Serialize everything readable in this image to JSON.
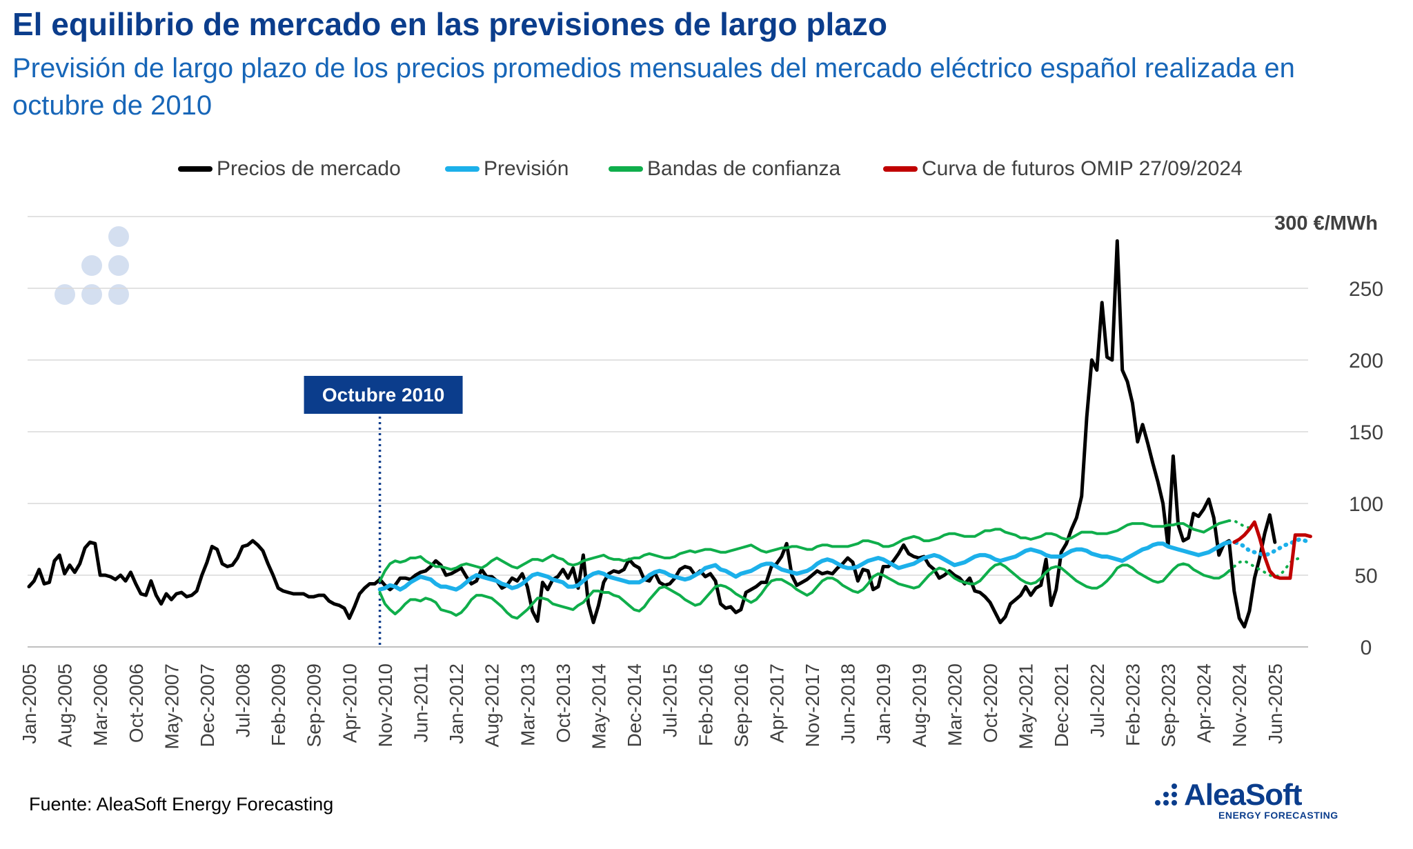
{
  "header": {
    "title": "El equilibrio de mercado en las previsiones de largo plazo",
    "subtitle": "Previsión de largo plazo de los precios promedios mensuales del mercado eléctrico español realizada en octubre de 2010"
  },
  "footer": {
    "source": "Fuente: AleaSoft Energy Forecasting",
    "logo_name": "AleaSoft",
    "logo_sub": "ENERGY FORECASTING"
  },
  "colors": {
    "title": "#0b3d8c",
    "subtitle": "#1766b8",
    "market": "#000000",
    "forecast": "#1cb0ea",
    "bands": "#0fae4b",
    "futures": "#c00000",
    "annotation_bg": "#0b3d8c",
    "grid": "#d9d9d9",
    "dots": "#d4dff0"
  },
  "chart_data": {
    "type": "line",
    "x_start": "2005-01",
    "x_end": "2025-12",
    "x_unit": "month",
    "ylim": [
      0,
      300
    ],
    "yticks": [
      0,
      50,
      100,
      150,
      200,
      250
    ],
    "y_top_label": "300 €/MWh",
    "y_axis_side": "right",
    "grid": true,
    "legend_position": "top",
    "xtick_labels": [
      "Jan-2005",
      "Aug-2005",
      "Mar-2006",
      "Oct-2006",
      "May-2007",
      "Dec-2007",
      "Jul-2008",
      "Feb-2009",
      "Sep-2009",
      "Apr-2010",
      "Nov-2010",
      "Jun-2011",
      "Jan-2012",
      "Aug-2012",
      "Mar-2013",
      "Oct-2013",
      "May-2014",
      "Dec-2014",
      "Jul-2015",
      "Feb-2016",
      "Sep-2016",
      "Apr-2017",
      "Nov-2017",
      "Jun-2018",
      "Jan-2019",
      "Aug-2019",
      "Mar-2020",
      "Oct-2020",
      "May-2021",
      "Dec-2021",
      "Jul-2022",
      "Feb-2023",
      "Sep-2023",
      "Apr-2024",
      "Nov-2024",
      "Jun-2025"
    ],
    "annotation": {
      "label": "Octubre 2010",
      "x": "2010-10"
    },
    "series": [
      {
        "name": "Precios de mercado",
        "start": "2005-01",
        "values": [
          42,
          46,
          54,
          44,
          45,
          60,
          64,
          51,
          57,
          52,
          58,
          69,
          73,
          72,
          50,
          50,
          49,
          47,
          50,
          46,
          52,
          44,
          37,
          36,
          46,
          36,
          30,
          37,
          33,
          37,
          38,
          35,
          36,
          39,
          50,
          59,
          70,
          68,
          58,
          56,
          57,
          62,
          70,
          71,
          74,
          71,
          67,
          58,
          50,
          41,
          39,
          38,
          37,
          37,
          37,
          35,
          35,
          36,
          36,
          32,
          30,
          29,
          27,
          20,
          28,
          37,
          41,
          44,
          44,
          47,
          43,
          40,
          43,
          48,
          48,
          47,
          50,
          52,
          53,
          56,
          60,
          57,
          50,
          51,
          53,
          55,
          49,
          44,
          46,
          54,
          49,
          49,
          46,
          41,
          43,
          48,
          46,
          51,
          42,
          25,
          18,
          45,
          40,
          47,
          49,
          54,
          48,
          55,
          41,
          64,
          30,
          17,
          29,
          45,
          51,
          53,
          52,
          54,
          61,
          57,
          55,
          47,
          46,
          52,
          45,
          43,
          44,
          48,
          54,
          56,
          55,
          50,
          53,
          49,
          51,
          46,
          30,
          27,
          28,
          24,
          26,
          38,
          40,
          42,
          45,
          45,
          56,
          58,
          63,
          72,
          50,
          43,
          45,
          47,
          50,
          53,
          51,
          52,
          51,
          55,
          58,
          62,
          59,
          46,
          54,
          53,
          40,
          42,
          56,
          56,
          60,
          65,
          71,
          65,
          63,
          62,
          63,
          57,
          54,
          48,
          50,
          53,
          50,
          48,
          44,
          48,
          39,
          38,
          35,
          31,
          24,
          17,
          21,
          30,
          33,
          36,
          42,
          36,
          41,
          43,
          61,
          29,
          40,
          66,
          72,
          82,
          90,
          105,
          160,
          200,
          193,
          240,
          202,
          200,
          283,
          193,
          185,
          170,
          143,
          155,
          142,
          128,
          115,
          100,
          70,
          133,
          85,
          74,
          76,
          93,
          91,
          96,
          103,
          90,
          64,
          72,
          74,
          39,
          20,
          14,
          25,
          48,
          62,
          79,
          92,
          73
        ]
      },
      {
        "name": "Previsión",
        "start": "2010-10",
        "values": [
          40,
          41,
          43,
          42,
          40,
          42,
          45,
          47,
          49,
          48,
          47,
          44,
          42,
          42,
          41,
          40,
          42,
          45,
          48,
          50,
          49,
          48,
          47,
          46,
          44,
          43,
          41,
          42,
          44,
          47,
          50,
          51,
          50,
          49,
          47,
          46,
          45,
          42,
          42,
          43,
          46,
          49,
          51,
          52,
          51,
          49,
          48,
          47,
          46,
          45,
          45,
          45,
          47,
          50,
          52,
          53,
          52,
          50,
          49,
          48,
          47,
          48,
          50,
          52,
          55,
          56,
          57,
          54,
          53,
          51,
          49,
          51,
          52,
          53,
          55,
          57,
          58,
          58,
          56,
          54,
          53,
          52,
          51,
          52,
          53,
          55,
          58,
          60,
          61,
          60,
          58,
          56,
          55,
          55,
          56,
          58,
          60,
          61,
          62,
          61,
          59,
          57,
          55,
          56,
          57,
          58,
          60,
          62,
          63,
          64,
          63,
          61,
          59,
          57,
          58,
          59,
          61,
          63,
          64,
          64,
          63,
          61,
          60,
          61,
          62,
          63,
          65,
          67,
          68,
          67,
          66,
          64,
          63,
          63,
          63,
          65,
          67,
          68,
          68,
          67,
          65,
          64,
          63,
          63,
          62,
          61,
          60,
          62,
          64,
          66,
          68,
          69,
          71,
          72,
          72,
          70,
          69,
          68,
          67,
          66,
          65,
          64,
          65,
          66,
          68,
          70,
          72,
          73,
          73,
          72,
          70,
          67,
          66,
          65,
          64,
          65,
          67,
          69,
          71,
          72,
          74,
          75,
          74,
          72
        ]
      },
      {
        "name": "Bandas de confianza (superior)",
        "start": "2010-10",
        "values": [
          46,
          53,
          58,
          60,
          59,
          60,
          62,
          62,
          63,
          60,
          58,
          56,
          56,
          55,
          54,
          55,
          57,
          58,
          57,
          56,
          55,
          57,
          60,
          62,
          60,
          58,
          56,
          55,
          57,
          59,
          61,
          61,
          60,
          62,
          64,
          62,
          61,
          58,
          57,
          58,
          60,
          61,
          62,
          63,
          64,
          62,
          61,
          61,
          60,
          61,
          62,
          62,
          64,
          65,
          64,
          63,
          62,
          62,
          63,
          65,
          66,
          67,
          66,
          67,
          68,
          68,
          67,
          66,
          66,
          67,
          68,
          69,
          70,
          71,
          69,
          67,
          66,
          67,
          68,
          69,
          69,
          70,
          70,
          69,
          68,
          68,
          70,
          71,
          71,
          70,
          70,
          70,
          70,
          71,
          72,
          74,
          74,
          73,
          72,
          70,
          70,
          71,
          73,
          75,
          76,
          77,
          76,
          74,
          74,
          75,
          76,
          78,
          79,
          79,
          78,
          77,
          77,
          77,
          79,
          81,
          81,
          82,
          82,
          80,
          79,
          78,
          76,
          76,
          75,
          76,
          77,
          79,
          79,
          78,
          76,
          75,
          76,
          78,
          80,
          80,
          80,
          79,
          79,
          79,
          80,
          81,
          83,
          85,
          86,
          86,
          86,
          85,
          84,
          84,
          84,
          85,
          85,
          86,
          86,
          84,
          82,
          81,
          80,
          82,
          84,
          86,
          87,
          88,
          88,
          86,
          84,
          83
        ]
      },
      {
        "name": "Bandas de confianza (inferior)",
        "start": "2010-10",
        "values": [
          38,
          30,
          26,
          23,
          26,
          30,
          33,
          33,
          32,
          34,
          33,
          31,
          26,
          25,
          24,
          22,
          24,
          28,
          33,
          36,
          36,
          35,
          34,
          31,
          28,
          24,
          21,
          20,
          23,
          26,
          30,
          34,
          34,
          33,
          30,
          29,
          28,
          27,
          26,
          29,
          31,
          35,
          39,
          39,
          38,
          38,
          36,
          35,
          32,
          29,
          26,
          25,
          28,
          33,
          37,
          41,
          42,
          40,
          38,
          36,
          33,
          31,
          29,
          30,
          34,
          38,
          42,
          43,
          42,
          40,
          37,
          35,
          33,
          31,
          33,
          37,
          42,
          46,
          47,
          47,
          45,
          43,
          40,
          38,
          36,
          38,
          42,
          46,
          48,
          48,
          46,
          43,
          41,
          39,
          38,
          40,
          44,
          49,
          51,
          50,
          48,
          46,
          44,
          43,
          42,
          41,
          42,
          46,
          50,
          53,
          55,
          54,
          51,
          48,
          46,
          45,
          44,
          44,
          46,
          50,
          54,
          57,
          58,
          56,
          53,
          50,
          47,
          45,
          44,
          45,
          48,
          52,
          55,
          56,
          55,
          52,
          49,
          46,
          44,
          42,
          41,
          41,
          43,
          46,
          50,
          55,
          57,
          57,
          55,
          52,
          50,
          48,
          46,
          45,
          46,
          50,
          54,
          57,
          58,
          57,
          54,
          52,
          50,
          49,
          48,
          48,
          50,
          53,
          56,
          59,
          60,
          58,
          56,
          54,
          52,
          50,
          49,
          50,
          54,
          59,
          61,
          62
        ]
      },
      {
        "name": "Curva de futuros OMIP 27/09/2024",
        "start": "2024-10",
        "values": [
          73,
          75,
          78,
          82,
          87,
          76,
          63,
          53,
          49,
          48,
          48,
          48,
          78,
          78,
          78,
          77
        ]
      }
    ]
  }
}
